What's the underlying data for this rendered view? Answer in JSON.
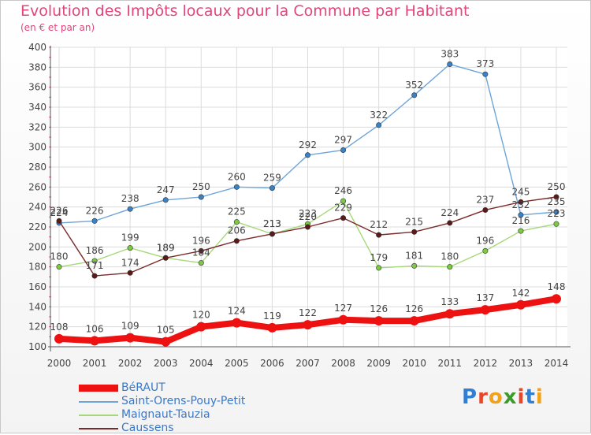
{
  "title": "Evolution des Impôts locaux pour la Commune par Habitant",
  "subtitle": "(en € et par an)",
  "logo": {
    "text": "Proxiti",
    "letters": [
      "P",
      "r",
      "o",
      "x",
      "i",
      "t",
      "i"
    ],
    "colors": [
      "#2f7fd6",
      "#e8462a",
      "#f2a11b",
      "#3c9a2b",
      "#e8462a",
      "#2f7fd6",
      "#f2a11b"
    ]
  },
  "chart_data": {
    "type": "line",
    "title": "Evolution des Impôts locaux pour la Commune par Habitant",
    "subtitle": "(en € et par an)",
    "x": [
      "2000",
      "2001",
      "2002",
      "2003",
      "2004",
      "2005",
      "2006",
      "2007",
      "2008",
      "2009",
      "2010",
      "2011",
      "2012",
      "2013",
      "2014"
    ],
    "ylim": [
      100,
      400
    ],
    "yticks": [
      "100",
      "120",
      "140",
      "160",
      "180",
      "200",
      "220",
      "240",
      "260",
      "280",
      "300",
      "320",
      "340",
      "360",
      "380",
      "400"
    ],
    "grid": true,
    "legend_position": "bottom-left",
    "series": [
      {
        "name": "Saint-Orens-Pouy-Petit",
        "color": "#6da4d9",
        "marker": "#3a82c6",
        "values": [
          224,
          226,
          238,
          247,
          250,
          260,
          259,
          292,
          297,
          322,
          352,
          383,
          373,
          232,
          235
        ]
      },
      {
        "name": "Maignaut-Tauzia",
        "color": "#a6d879",
        "marker": "#7ccb3f",
        "values": [
          180,
          186,
          199,
          189,
          184,
          225,
          213,
          223,
          246,
          179,
          181,
          180,
          196,
          216,
          223
        ]
      },
      {
        "name": "Caussens",
        "color": "#7a2a2a",
        "marker": "#5a1a1a",
        "values": [
          226,
          171,
          174,
          189,
          196,
          206,
          213,
          220,
          229,
          212,
          215,
          224,
          237,
          245,
          250
        ]
      },
      {
        "name": "BéRAUT",
        "color": "#ee1111",
        "marker": "#ee1111",
        "values": [
          108,
          106,
          109,
          105,
          120,
          124,
          119,
          122,
          127,
          126,
          126,
          133,
          137,
          142,
          148
        ]
      }
    ],
    "legend_order": [
      "BéRAUT",
      "Saint-Orens-Pouy-Petit",
      "Maignaut-Tauzia",
      "Caussens"
    ]
  }
}
